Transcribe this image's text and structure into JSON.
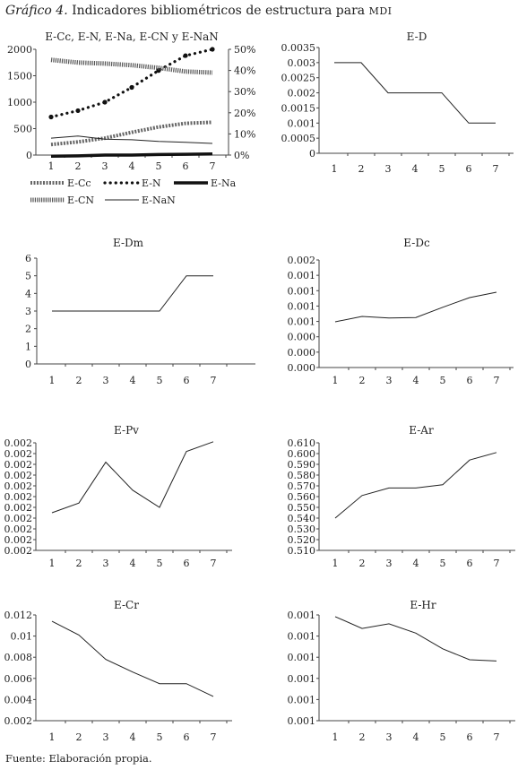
{
  "figure": {
    "label": "Gráfico 4.",
    "title_main": "Indicadores bibliométricos de estructura para",
    "title_acronym": "MDI",
    "source": "Fuente: Elaboración propia."
  },
  "chart_data": [
    {
      "type": "line",
      "title": "E-Cc, E-N, E-Na, E-CN y E-NaN",
      "x": [
        "1",
        "2",
        "3",
        "4",
        "5",
        "6",
        "7"
      ],
      "ylim": [
        0,
        2000
      ],
      "yticks": [
        "0",
        "500",
        "1000",
        "1500",
        "2000"
      ],
      "y2lim": [
        0,
        50
      ],
      "y2ticks": [
        "0%",
        "10%",
        "20%",
        "30%",
        "40%",
        "50%"
      ],
      "legend_position": "bottom",
      "series": [
        {
          "name": "E-Cc",
          "axis": "left",
          "style": "zigzag",
          "values": [
            200,
            250,
            320,
            430,
            530,
            600,
            620
          ]
        },
        {
          "name": "E-N",
          "axis": "right",
          "style": "dotted",
          "values": [
            18,
            21,
            25,
            32,
            40,
            47,
            50
          ]
        },
        {
          "name": "E-Na",
          "axis": "left",
          "style": "thick",
          "values": [
            -20,
            -15,
            0,
            0,
            10,
            15,
            20
          ]
        },
        {
          "name": "E-CN",
          "axis": "left",
          "style": "hatched",
          "values": [
            1800,
            1750,
            1730,
            1700,
            1650,
            1580,
            1560
          ]
        },
        {
          "name": "E-NaN",
          "axis": "left",
          "style": "thin",
          "values": [
            320,
            360,
            300,
            290,
            260,
            240,
            220
          ]
        }
      ]
    },
    {
      "type": "line",
      "title": "E-D",
      "x": [
        "1",
        "2",
        "3",
        "4",
        "5",
        "6",
        "7"
      ],
      "ylim": [
        0,
        0.0035
      ],
      "yticks": [
        "0",
        "0.0005",
        "0.001",
        "0.0015",
        "0.002",
        "0.0025",
        "0.003",
        "0.0035"
      ],
      "series": [
        {
          "values": [
            0.003,
            0.003,
            0.002,
            0.002,
            0.002,
            0.001,
            0.001
          ]
        }
      ]
    },
    {
      "type": "line",
      "title": "E-Dm",
      "x": [
        "1",
        "2",
        "3",
        "4",
        "5",
        "6",
        "7"
      ],
      "ylim": [
        0,
        6
      ],
      "yticks": [
        "0",
        "1",
        "2",
        "3",
        "4",
        "5",
        "6"
      ],
      "series": [
        {
          "values": [
            3,
            3,
            3,
            3,
            3,
            5,
            5
          ]
        }
      ]
    },
    {
      "type": "line",
      "title": "E-Dc",
      "x": [
        "1",
        "2",
        "3",
        "4",
        "5",
        "6",
        "7"
      ],
      "ylim": [
        0,
        0.002
      ],
      "yticks": [
        "0.000",
        "0.000",
        "0.000",
        "0.001",
        "0.001",
        "0.001",
        "0.001",
        "0.002"
      ],
      "series": [
        {
          "values": [
            0.00085,
            0.00095,
            0.00092,
            0.00093,
            0.00112,
            0.0013,
            0.0014
          ]
        }
      ]
    },
    {
      "type": "line",
      "title": "E-Pv",
      "x": [
        "1",
        "2",
        "3",
        "4",
        "5",
        "6",
        "7"
      ],
      "ylim": [
        0,
        1
      ],
      "yticks": [
        "0.002",
        "0.002",
        "0.002",
        "0.002",
        "0.002",
        "0.002",
        "0.002",
        "0.002",
        "0.002",
        "0.002",
        "0.002"
      ],
      "series": [
        {
          "values": [
            0.35,
            0.44,
            0.82,
            0.56,
            0.4,
            0.92,
            1.01
          ]
        }
      ]
    },
    {
      "type": "line",
      "title": "E-Ar",
      "x": [
        "1",
        "2",
        "3",
        "4",
        "5",
        "6",
        "7"
      ],
      "ylim": [
        0.51,
        0.61
      ],
      "yticks": [
        "0.510",
        "0.520",
        "0.530",
        "0.540",
        "0.550",
        "0.560",
        "0.570",
        "0.580",
        "0.590",
        "0.600",
        "0.610"
      ],
      "series": [
        {
          "values": [
            0.54,
            0.561,
            0.568,
            0.568,
            0.571,
            0.594,
            0.601
          ]
        }
      ]
    },
    {
      "type": "line",
      "title": "E-Cr",
      "x": [
        "1",
        "2",
        "3",
        "4",
        "5",
        "6",
        "7"
      ],
      "ylim": [
        0.002,
        0.012
      ],
      "yticks": [
        "0.002",
        "0.004",
        "0.006",
        "0.008",
        "0.01",
        "0.012"
      ],
      "series": [
        {
          "values": [
            0.0114,
            0.0101,
            0.0078,
            0.0066,
            0.0055,
            0.0055,
            0.0043
          ]
        }
      ]
    },
    {
      "type": "line",
      "title": "E-Hr",
      "x": [
        "1",
        "2",
        "3",
        "4",
        "5",
        "6",
        "7"
      ],
      "ylim": [
        0,
        5
      ],
      "yticks": [
        "0.001",
        "0.001",
        "0.001",
        "0.001",
        "0.001",
        "0.001"
      ],
      "series": [
        {
          "values": [
            4.92,
            4.36,
            4.58,
            4.14,
            3.4,
            2.88,
            2.82
          ]
        }
      ]
    }
  ]
}
